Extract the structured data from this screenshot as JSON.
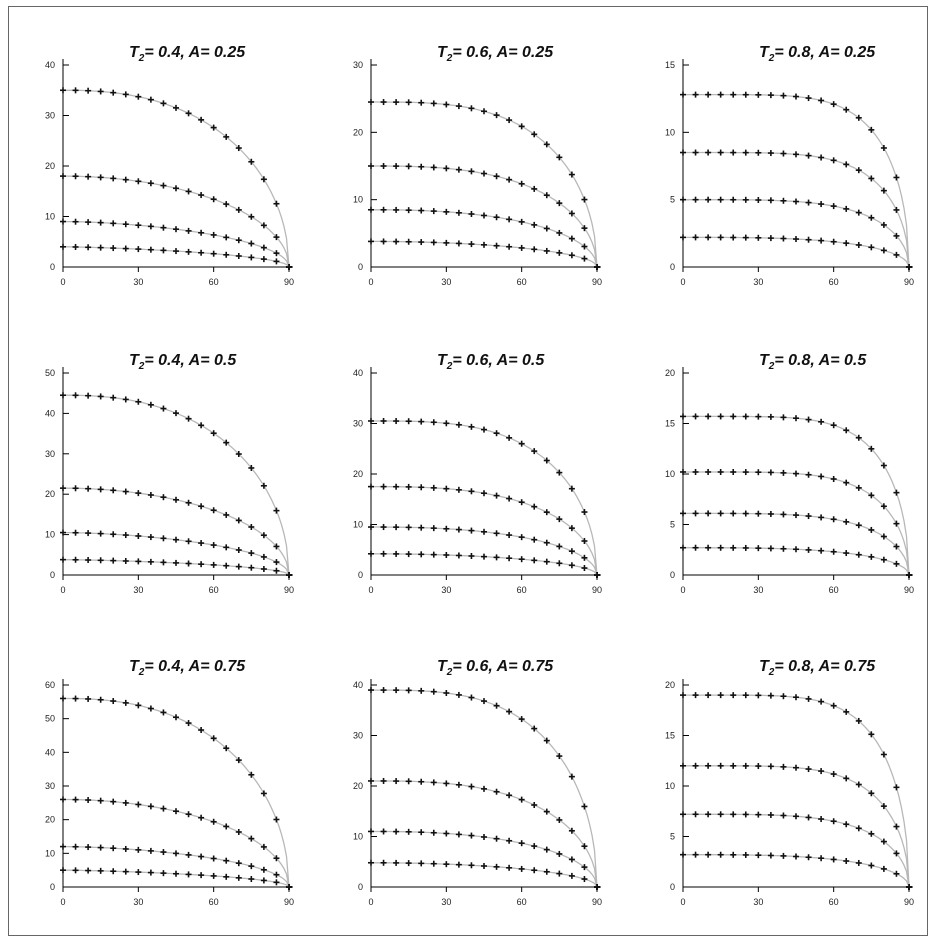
{
  "chart_data": [
    {
      "type": "scatter",
      "title": "T2= 0.4, A= 0.25",
      "xticks": [
        "0",
        "30",
        "60",
        "90"
      ],
      "yticks": [
        "0",
        "10",
        "20",
        "30",
        "40"
      ],
      "xlim": [
        0,
        90
      ],
      "ylim": [
        0,
        40
      ],
      "series": [
        {
          "y0": 35,
          "p": 2.4
        },
        {
          "y0": 18,
          "p": 2.0
        },
        {
          "y0": 9,
          "p": 1.7
        },
        {
          "y0": 4,
          "p": 1.4
        }
      ]
    },
    {
      "type": "scatter",
      "title": "T2= 0.6, A= 0.25",
      "xticks": [
        "0",
        "30",
        "60",
        "90"
      ],
      "yticks": [
        "0",
        "10",
        "20",
        "30"
      ],
      "xlim": [
        0,
        90
      ],
      "ylim": [
        0,
        30
      ],
      "series": [
        {
          "y0": 24.5,
          "p": 3.2
        },
        {
          "y0": 15,
          "p": 2.8
        },
        {
          "y0": 8.5,
          "p": 2.4
        },
        {
          "y0": 3.8,
          "p": 2.0
        }
      ]
    },
    {
      "type": "scatter",
      "title": "T2= 0.8, A= 0.25",
      "xticks": [
        "0",
        "30",
        "60",
        "90"
      ],
      "yticks": [
        "0",
        "5",
        "10",
        "15"
      ],
      "xlim": [
        0,
        90
      ],
      "ylim": [
        0,
        15
      ],
      "series": [
        {
          "y0": 12.8,
          "p": 5.5
        },
        {
          "y0": 8.5,
          "p": 5.0
        },
        {
          "y0": 5.0,
          "p": 4.2
        },
        {
          "y0": 2.2,
          "p": 3.2
        }
      ]
    },
    {
      "type": "scatter",
      "title": "T2= 0.4, A= 0.5",
      "xticks": [
        "0",
        "30",
        "60",
        "90"
      ],
      "yticks": [
        "0",
        "10",
        "20",
        "30",
        "40",
        "50"
      ],
      "xlim": [
        0,
        90
      ],
      "ylim": [
        0,
        50
      ],
      "series": [
        {
          "y0": 44.5,
          "p": 2.4
        },
        {
          "y0": 21.5,
          "p": 2.0
        },
        {
          "y0": 10.5,
          "p": 1.7
        },
        {
          "y0": 3.8,
          "p": 1.4
        }
      ]
    },
    {
      "type": "scatter",
      "title": "T2= 0.6, A= 0.5",
      "xticks": [
        "0",
        "30",
        "60",
        "90"
      ],
      "yticks": [
        "0",
        "10",
        "20",
        "30",
        "40"
      ],
      "xlim": [
        0,
        90
      ],
      "ylim": [
        0,
        40
      ],
      "series": [
        {
          "y0": 30.5,
          "p": 3.2
        },
        {
          "y0": 17.5,
          "p": 2.8
        },
        {
          "y0": 9.5,
          "p": 2.4
        },
        {
          "y0": 4.2,
          "p": 2.0
        }
      ]
    },
    {
      "type": "scatter",
      "title": "T2= 0.8, A= 0.5",
      "xticks": [
        "0",
        "30",
        "60",
        "90"
      ],
      "yticks": [
        "0",
        "5",
        "10",
        "15",
        "20"
      ],
      "xlim": [
        0,
        90
      ],
      "ylim": [
        0,
        20
      ],
      "series": [
        {
          "y0": 15.7,
          "p": 5.5
        },
        {
          "y0": 10.2,
          "p": 5.0
        },
        {
          "y0": 6.1,
          "p": 4.2
        },
        {
          "y0": 2.7,
          "p": 3.2
        }
      ]
    },
    {
      "type": "scatter",
      "title": "T2= 0.4, A= 0.75",
      "xticks": [
        "0",
        "30",
        "60",
        "90"
      ],
      "yticks": [
        "0",
        "10",
        "20",
        "30",
        "40",
        "50",
        "60"
      ],
      "xlim": [
        0,
        90
      ],
      "ylim": [
        0,
        60
      ],
      "series": [
        {
          "y0": 56,
          "p": 2.4
        },
        {
          "y0": 26,
          "p": 2.0
        },
        {
          "y0": 12,
          "p": 1.7
        },
        {
          "y0": 5,
          "p": 1.4
        }
      ]
    },
    {
      "type": "scatter",
      "title": "T2= 0.6, A= 0.75",
      "xticks": [
        "0",
        "30",
        "60",
        "90"
      ],
      "yticks": [
        "0",
        "10",
        "20",
        "30",
        "40"
      ],
      "xlim": [
        0,
        90
      ],
      "ylim": [
        0,
        40
      ],
      "series": [
        {
          "y0": 39,
          "p": 3.2
        },
        {
          "y0": 21,
          "p": 2.8
        },
        {
          "y0": 11,
          "p": 2.4
        },
        {
          "y0": 4.8,
          "p": 2.0
        }
      ]
    },
    {
      "type": "scatter",
      "title": "T2= 0.8, A= 0.75",
      "xticks": [
        "0",
        "30",
        "60",
        "90"
      ],
      "yticks": [
        "0",
        "5",
        "10",
        "15",
        "20"
      ],
      "xlim": [
        0,
        90
      ],
      "ylim": [
        0,
        20
      ],
      "series": [
        {
          "y0": 19,
          "p": 5.5
        },
        {
          "y0": 12,
          "p": 5.0
        },
        {
          "y0": 7.2,
          "p": 4.2
        },
        {
          "y0": 3.2,
          "p": 3.2
        }
      ]
    }
  ]
}
